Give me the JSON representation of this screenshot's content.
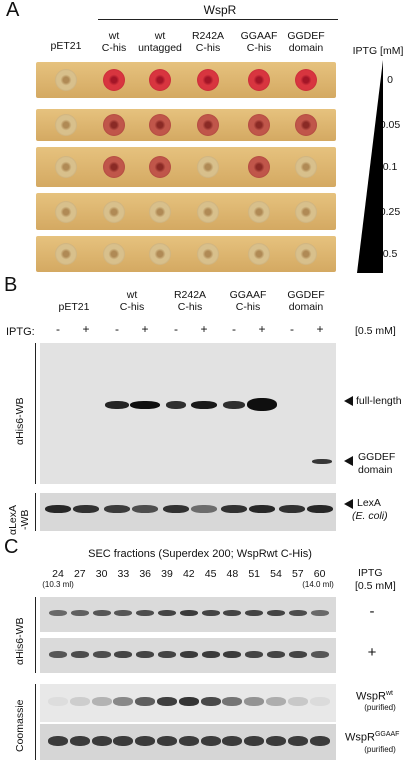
{
  "panelA": {
    "letter": "A",
    "group_header": "WspR",
    "columns": [
      "pET21",
      "wt C-his",
      "wt untagged",
      "R242A C-his",
      "GGAAF C-his",
      "GGDEF domain"
    ],
    "columns_line1": [
      "pET21",
      "wt",
      "wt",
      "R242A",
      "GGAAF",
      "GGDEF"
    ],
    "columns_line2": [
      "",
      "C-his",
      "untagged",
      "C-his",
      "C-his",
      "domain"
    ],
    "iptg_label": "IPTG [mM]",
    "rows": [
      "0",
      "0.05",
      "0.1",
      "0.25",
      "0.5"
    ]
  },
  "panelB": {
    "letter": "B",
    "columns_line1": [
      "pET21",
      "wt",
      "R242A",
      "GGAAF",
      "GGDEF"
    ],
    "columns_line2": [
      "",
      "C-his",
      "C-his",
      "C-his",
      "domain"
    ],
    "iptg_prefix": "IPTG:",
    "iptg_signs": [
      "-",
      "+",
      "-",
      "+",
      "-",
      "+",
      "-",
      "+",
      "-",
      "+"
    ],
    "iptg_conc": "[0.5 mM]",
    "blot1_label": "αHis6-WB",
    "blot2_label_1": "αLexA",
    "blot2_label_2": "-WB",
    "arrow_full_length": "full-length",
    "arrow_ggdef_1": "GGDEF",
    "arrow_ggdef_2": "domain",
    "arrow_lexa_1": "LexA",
    "arrow_lexa_2": "(E. coli)"
  },
  "panelC": {
    "letter": "C",
    "title": "SEC fractions (Superdex 200; WspRwt C-His)",
    "fractions": [
      "24",
      "27",
      "30",
      "33",
      "36",
      "39",
      "42",
      "45",
      "48",
      "51",
      "54",
      "57",
      "60"
    ],
    "vol_first": "(10.3 ml)",
    "vol_last": "(14.0 ml)",
    "iptg_line1": "IPTG",
    "iptg_line2": "[0.5 mM]",
    "wb_label": "αHis6-WB",
    "wb_minus": "-",
    "wb_plus": "+",
    "coomassie_label": "Coomassie",
    "wspr_wt": "WspR",
    "wspr_wt_sup": "wt",
    "purified": "(purified)",
    "wspr_ggaaf": "WspR",
    "wspr_ggaaf_sup": "GGAAF"
  },
  "colors": {
    "plate_bg": "#d9b470",
    "red_colony": "#c0283a",
    "pale_colony": "#c8a870",
    "blot_bg": "#e4e4e4",
    "band": "#1a1a1a"
  },
  "colony_state": [
    [
      "pale",
      "red",
      "red",
      "red",
      "red",
      "red"
    ],
    [
      "pale",
      "mid",
      "mid",
      "mid",
      "mid",
      "mid"
    ],
    [
      "pale",
      "mid",
      "mid",
      "pale",
      "mid",
      "pale"
    ],
    [
      "pale",
      "pale",
      "pale",
      "pale",
      "pale",
      "pale"
    ],
    [
      "pale",
      "pale",
      "pale",
      "pale",
      "pale",
      "pale"
    ]
  ]
}
